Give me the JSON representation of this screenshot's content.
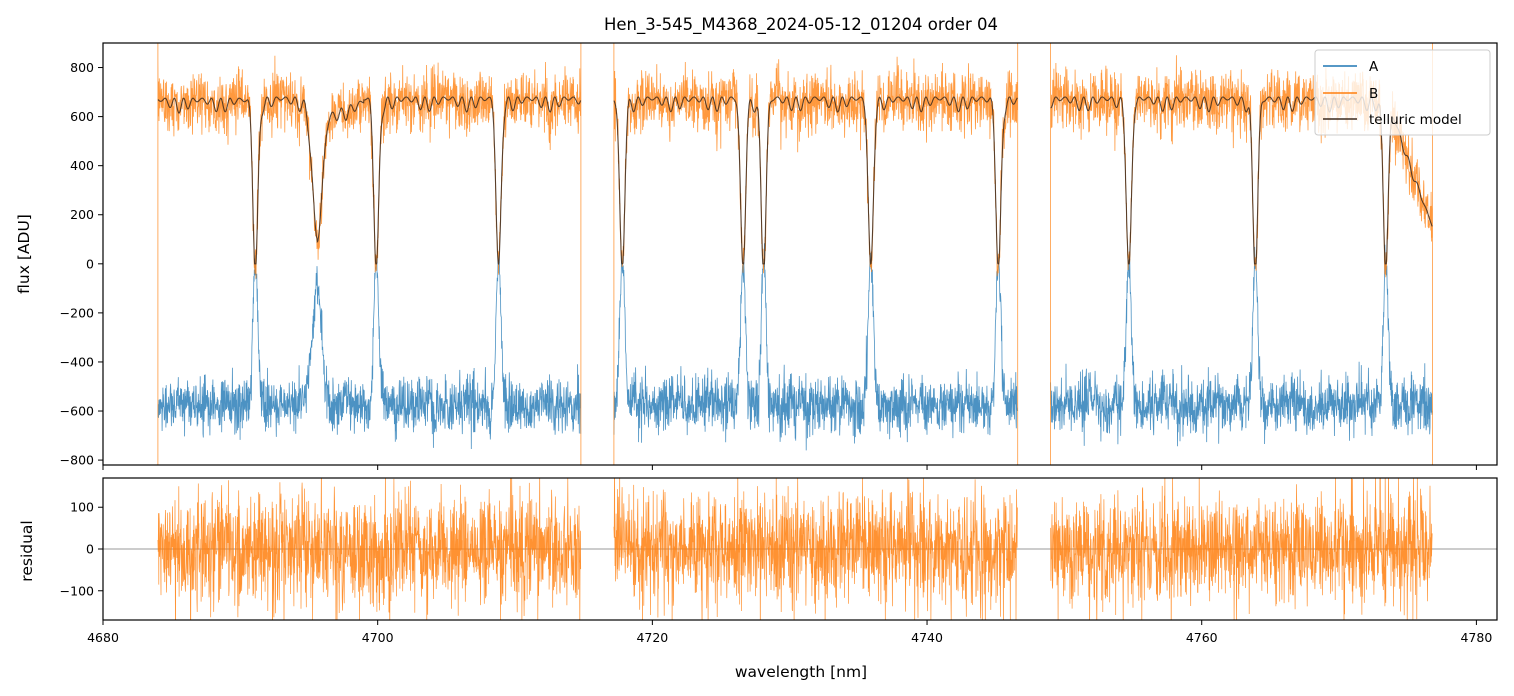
{
  "chart_data": [
    {
      "type": "line",
      "panel": "main",
      "title": "Hen_3-545_M4368_2024-05-12_01204  order 04",
      "xlabel": "",
      "ylabel": "flux [ADU]",
      "xlim": [
        4680,
        4781.5
      ],
      "ylim": [
        -820,
        900
      ],
      "x_ticks": [
        4680,
        4700,
        4720,
        4740,
        4760,
        4780
      ],
      "x_tick_labels_shown": false,
      "y_ticks": [
        -800,
        -600,
        -400,
        -200,
        0,
        200,
        400,
        600,
        800
      ],
      "grid": false,
      "legend_position": "upper right",
      "segments": [
        [
          4684.0,
          4714.8
        ],
        [
          4717.2,
          4746.6
        ],
        [
          4749.0,
          4776.8
        ]
      ],
      "series": [
        {
          "name": "A",
          "color": "#1f77b4",
          "description": "negative telluric-absorbed spectrum, continuum near -600 ADU, absorption lines rise toward 0",
          "continuum": -590,
          "noise_amplitude": 55
        },
        {
          "name": "B",
          "color": "#ff7f0e",
          "description": "positive spectrum, continuum near 650-700 ADU, deep absorption lines drop to 0",
          "continuum": 680,
          "noise_amplitude": 60
        },
        {
          "name": "telluric model",
          "color": "#3b2a1e",
          "description": "smooth telluric model following B"
        }
      ],
      "absorption_lines_nm": [
        4691.1,
        4695.6,
        4699.9,
        4708.8,
        4717.8,
        4726.6,
        4728.1,
        4735.9,
        4745.2,
        4754.7,
        4763.9,
        4773.4
      ]
    },
    {
      "type": "line",
      "panel": "residual",
      "xlabel": "wavelength [nm]",
      "ylabel": "residual",
      "xlim": [
        4680,
        4781.5
      ],
      "ylim": [
        -170,
        170
      ],
      "x_ticks": [
        4680,
        4700,
        4720,
        4740,
        4760,
        4780
      ],
      "x_tick_labels": [
        "4680",
        "4700",
        "4720",
        "4740",
        "4760",
        "4780"
      ],
      "y_ticks": [
        -100,
        0,
        100
      ],
      "zero_line": true,
      "series": [
        {
          "name": "B",
          "color": "#ff7f0e",
          "description": "residual noise around 0, roughly +/-100 ADU",
          "noise_amplitude": 65
        }
      ]
    }
  ]
}
